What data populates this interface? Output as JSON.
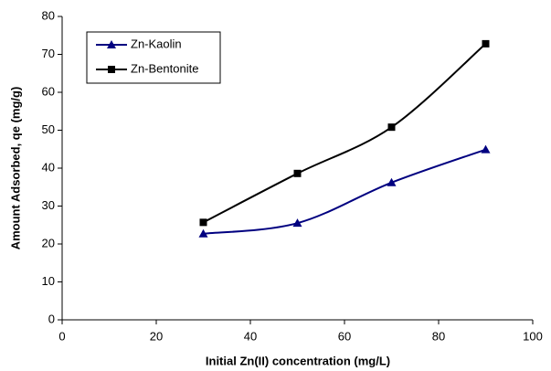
{
  "chart_data": {
    "type": "line",
    "xlabel": "Initial Zn(II) concentration (mg/L)",
    "ylabel": "Amount Adsorbed, qe (mg/g)",
    "x": [
      30,
      50,
      70,
      90
    ],
    "series": [
      {
        "name": "Zn-Kaolin",
        "color": "#000080",
        "marker": "triangle",
        "values": [
          22.7,
          25.5,
          36.2,
          44.9
        ]
      },
      {
        "name": "Zn-Bentonite",
        "color": "#000000",
        "marker": "square",
        "values": [
          25.7,
          38.6,
          50.8,
          72.8
        ]
      }
    ],
    "xlim": [
      0,
      100
    ],
    "xticks": [
      0,
      20,
      40,
      60,
      80,
      100
    ],
    "ylim": [
      0,
      80
    ],
    "yticks": [
      0,
      10,
      20,
      30,
      40,
      50,
      60,
      70,
      80
    ],
    "grid": false,
    "legend": "upper left"
  }
}
